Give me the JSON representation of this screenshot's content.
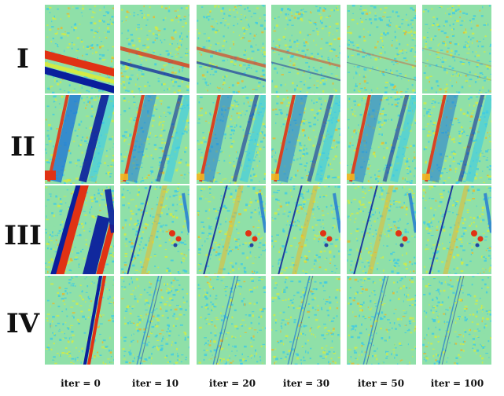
{
  "rows": [
    {
      "label": "I",
      "pattern": "diagonal-band-shallow"
    },
    {
      "label": "II",
      "pattern": "parallel-strips-steep"
    },
    {
      "label": "III",
      "pattern": "mixed-strips-with-blobs"
    },
    {
      "label": "IV",
      "pattern": "single-thin-line-steep"
    }
  ],
  "columns": [
    {
      "label": "iter = 0",
      "iter": 0
    },
    {
      "label": "iter = 10",
      "iter": 10
    },
    {
      "label": "iter = 20",
      "iter": 20
    },
    {
      "label": "iter = 30",
      "iter": 30
    },
    {
      "label": "iter = 50",
      "iter": 50
    },
    {
      "label": "iter = 100",
      "iter": 100
    }
  ],
  "colormap": [
    "#0a1e9c",
    "#1f77d4",
    "#38c9e8",
    "#8fe0a8",
    "#d9ec3a",
    "#f2b620",
    "#e03214"
  ]
}
